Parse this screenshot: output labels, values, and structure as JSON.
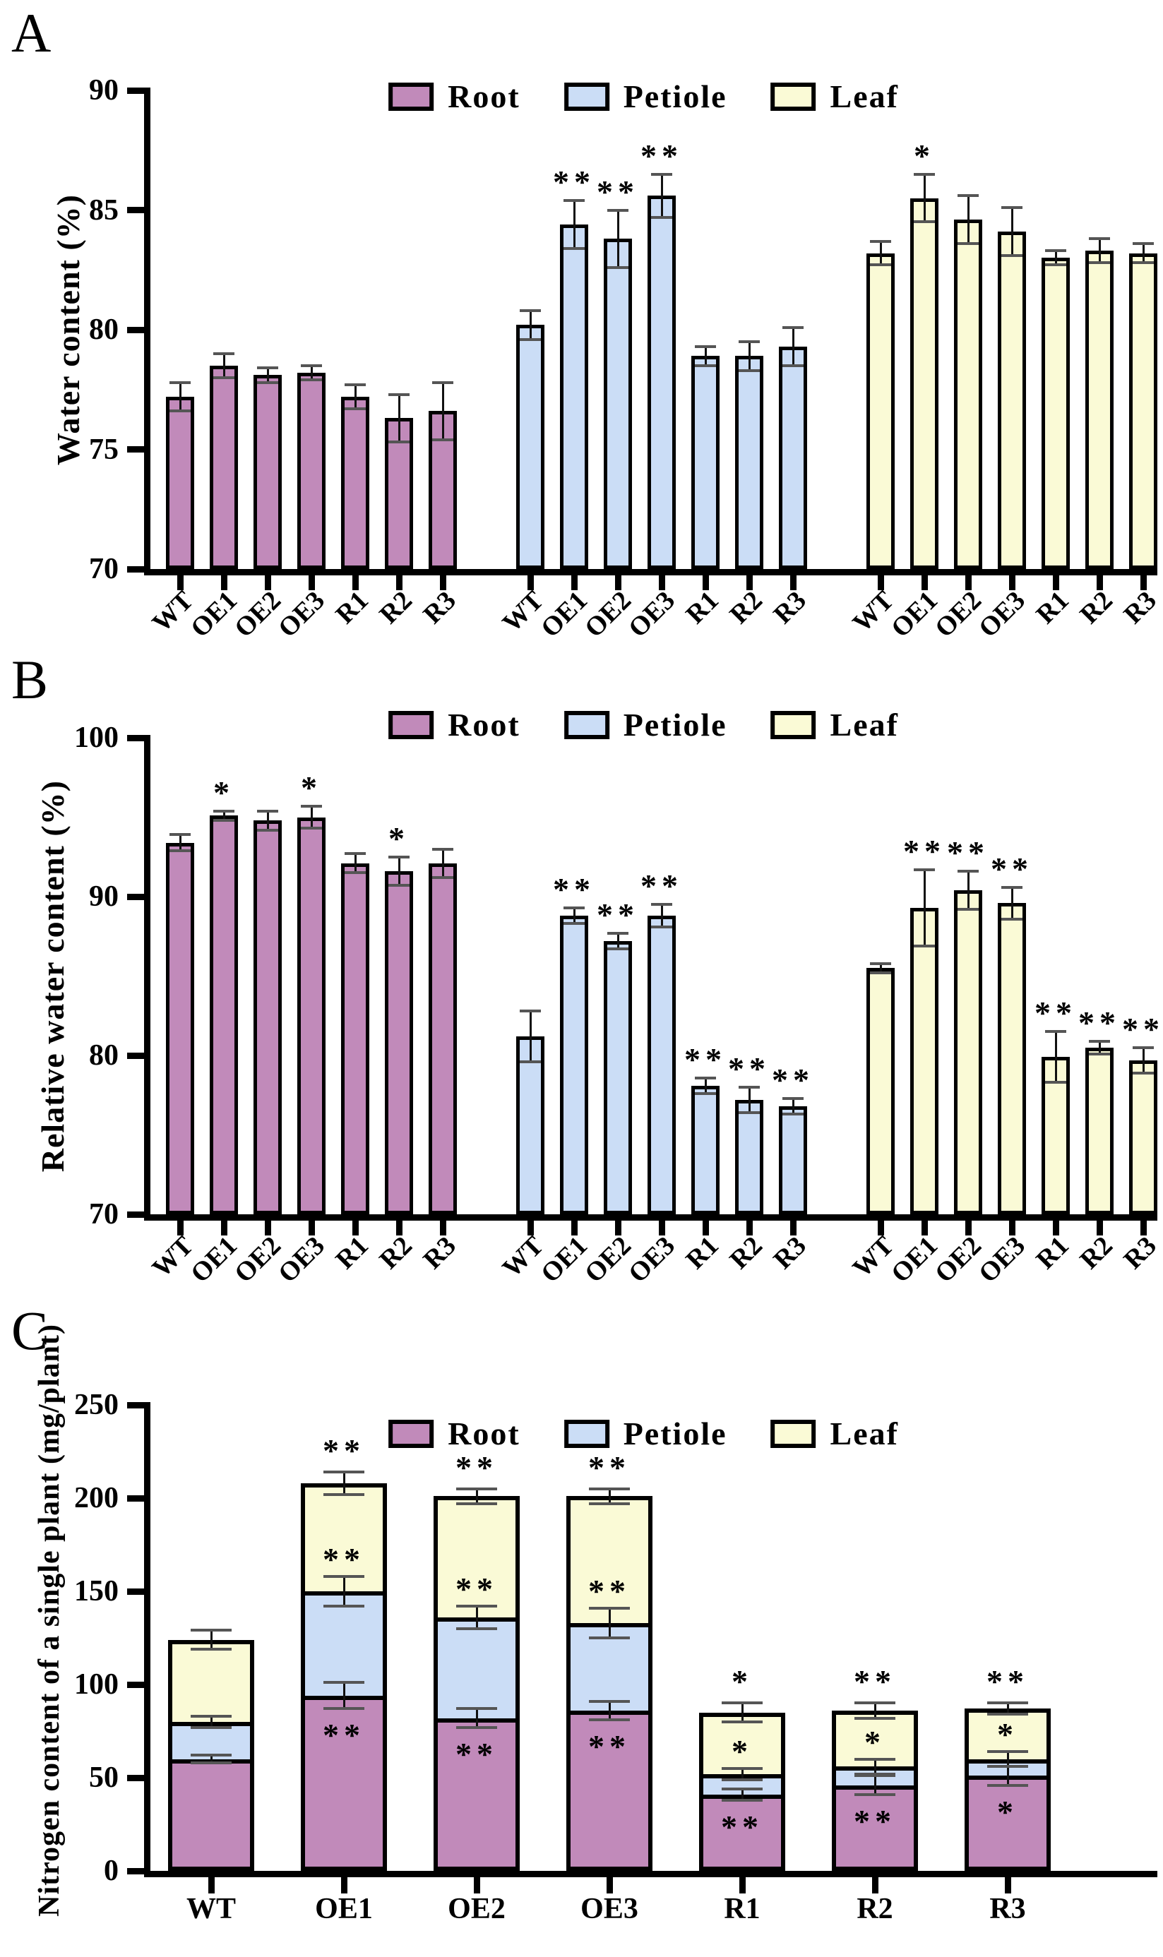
{
  "figure": {
    "panels": [
      {
        "letter": "A"
      },
      {
        "letter": "B"
      },
      {
        "letter": "C"
      }
    ],
    "colors": {
      "root": "#C18ABA",
      "petiole": "#CBDDF6",
      "leaf": "#FAFAD6",
      "outline": "#000000"
    }
  },
  "chart_data": [
    {
      "type": "bar",
      "panel": "a",
      "ylabel": "Water content (%)",
      "ylim": [
        70,
        90
      ],
      "yticks": [
        90,
        85,
        80,
        75,
        70
      ],
      "grid": false,
      "legend_position": "top-center",
      "categories": [
        "WT",
        "OE1",
        "OE2",
        "OE3",
        "R1",
        "R2",
        "R3"
      ],
      "legend": [
        "Root",
        "Petiole",
        "Leaf"
      ],
      "groups": [
        {
          "name": "Root",
          "color": "#C18ABA",
          "values": [
            77.2,
            78.5,
            78.1,
            78.2,
            77.2,
            76.3,
            76.6
          ],
          "errors": [
            0.6,
            0.5,
            0.3,
            0.3,
            0.5,
            1.0,
            1.2
          ],
          "sig": [
            "",
            "",
            "",
            "",
            "",
            "",
            ""
          ]
        },
        {
          "name": "Petiole",
          "color": "#CBDDF6",
          "values": [
            80.2,
            84.4,
            83.8,
            85.6,
            78.9,
            78.9,
            79.3
          ],
          "errors": [
            0.6,
            1.0,
            1.2,
            0.9,
            0.4,
            0.6,
            0.8
          ],
          "sig": [
            "",
            "**",
            "**",
            "**",
            "",
            "",
            ""
          ]
        },
        {
          "name": "Leaf",
          "color": "#FAFAD6",
          "values": [
            83.2,
            85.5,
            84.6,
            84.1,
            83.0,
            83.3,
            83.2
          ],
          "errors": [
            0.5,
            1.0,
            1.0,
            1.0,
            0.3,
            0.5,
            0.4
          ],
          "sig": [
            "",
            "*",
            "",
            "",
            "",
            "",
            ""
          ]
        }
      ]
    },
    {
      "type": "bar",
      "panel": "b",
      "ylabel": "Relative water content (%)",
      "ylim": [
        70,
        100
      ],
      "yticks": [
        100,
        90,
        80,
        70
      ],
      "grid": false,
      "legend_position": "top-center",
      "categories": [
        "WT",
        "OE1",
        "OE2",
        "OE3",
        "R1",
        "R2",
        "R3"
      ],
      "legend": [
        "Root",
        "Petiole",
        "Leaf"
      ],
      "groups": [
        {
          "name": "Root",
          "color": "#C18ABA",
          "values": [
            93.4,
            95.1,
            94.8,
            95.0,
            92.1,
            91.6,
            92.1
          ],
          "errors": [
            0.5,
            0.3,
            0.6,
            0.7,
            0.6,
            0.9,
            0.9
          ],
          "sig": [
            "",
            "*",
            "",
            "*",
            "",
            "*",
            ""
          ]
        },
        {
          "name": "Petiole",
          "color": "#CBDDF6",
          "values": [
            81.2,
            88.8,
            87.2,
            88.8,
            78.1,
            77.2,
            76.8
          ],
          "errors": [
            1.6,
            0.5,
            0.5,
            0.7,
            0.5,
            0.8,
            0.5
          ],
          "sig": [
            "",
            "**",
            "**",
            "**",
            "**",
            "**",
            "**"
          ]
        },
        {
          "name": "Leaf",
          "color": "#FAFAD6",
          "values": [
            85.5,
            89.3,
            90.4,
            89.6,
            79.9,
            80.5,
            79.7
          ],
          "errors": [
            0.3,
            2.4,
            1.2,
            1.0,
            1.6,
            0.4,
            0.8
          ],
          "sig": [
            "",
            "**",
            "**",
            "**",
            "**",
            "**",
            "**"
          ]
        }
      ]
    },
    {
      "type": "stacked-bar",
      "panel": "c",
      "ylabel": "Nitrogen content of a single plant (mg/plant)",
      "ylim": [
        0,
        250
      ],
      "yticks": [
        250,
        200,
        150,
        100,
        50,
        0
      ],
      "grid": false,
      "legend_position": "top-center",
      "categories": [
        "WT",
        "OE1",
        "OE2",
        "OE3",
        "R1",
        "R2",
        "R3"
      ],
      "legend": [
        "Root",
        "Petiole",
        "Leaf"
      ],
      "totals": [
        124,
        208,
        201,
        201,
        85,
        86,
        87
      ],
      "segments": [
        {
          "name": "Root",
          "color": "#C18ABA",
          "values": [
            60,
            94,
            82,
            86,
            41,
            46,
            51
          ],
          "errors": [
            2,
            7,
            5,
            5,
            3,
            5,
            5
          ],
          "sig": [
            "",
            "**",
            "**",
            "**",
            "**",
            "**",
            "*"
          ]
        },
        {
          "name": "Petiole",
          "color": "#CBDDF6",
          "values": [
            20,
            56,
            54,
            47,
            11,
            10,
            9
          ],
          "errors": [
            3,
            8,
            6,
            8,
            3,
            4,
            4
          ],
          "sig": [
            "",
            "**",
            "**",
            "**",
            "*",
            "*",
            "*"
          ]
        },
        {
          "name": "Leaf",
          "color": "#FAFAD6",
          "values": [
            44,
            58,
            65,
            68,
            33,
            30,
            27
          ],
          "errors": [
            5,
            6,
            4,
            4,
            5,
            4,
            3
          ],
          "sig": [
            "",
            "**",
            "**",
            "**",
            "*",
            "**",
            "**"
          ]
        }
      ]
    }
  ]
}
